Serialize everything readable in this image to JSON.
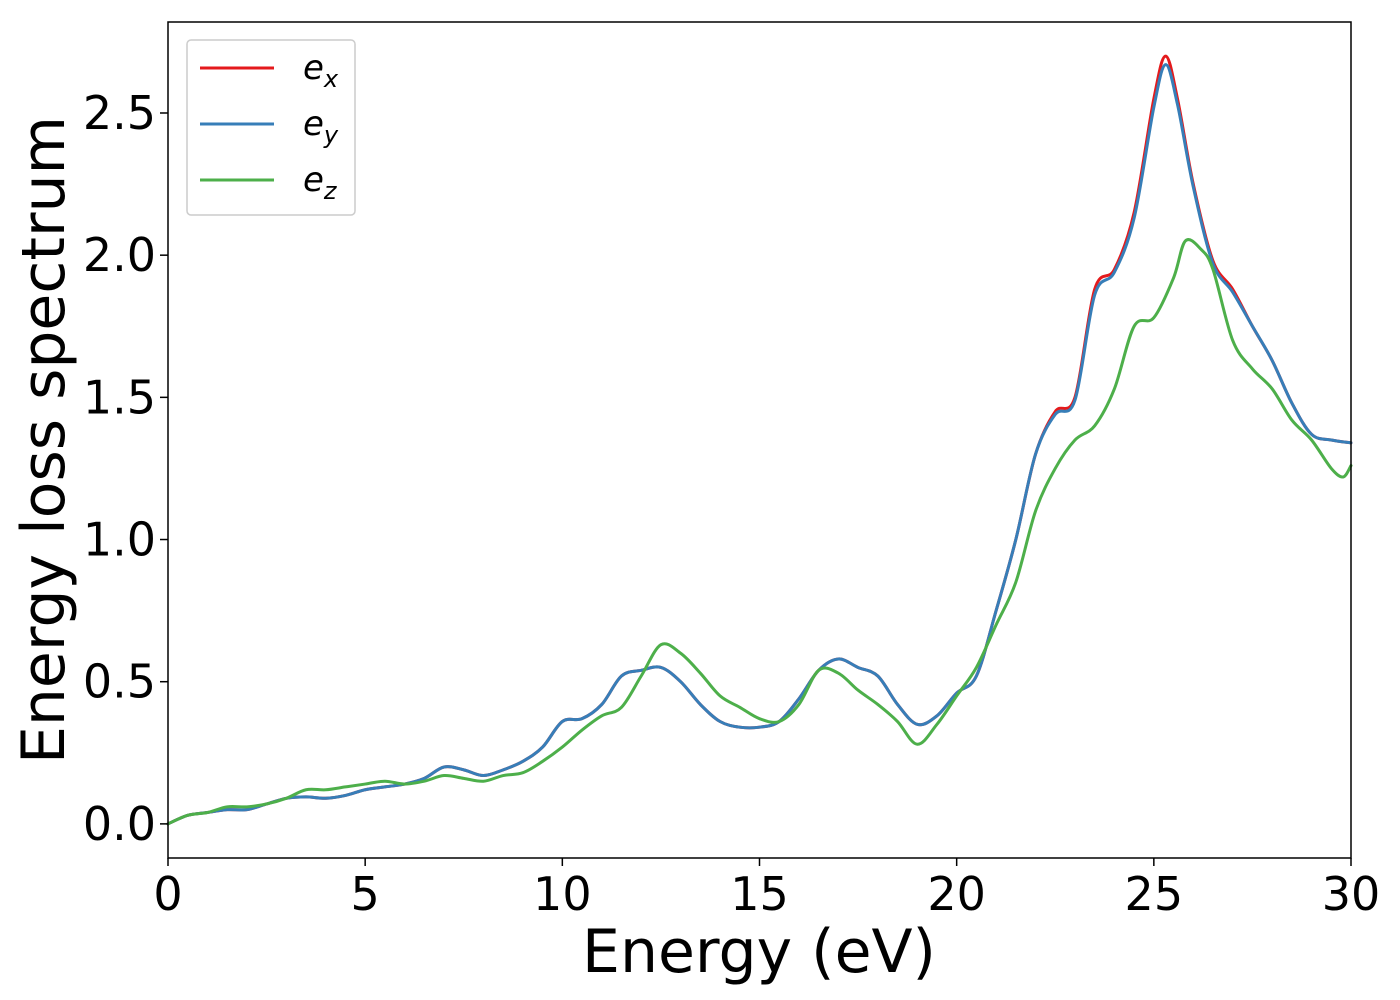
{
  "chart_data": {
    "type": "line",
    "xlabel": "Energy (eV)",
    "ylabel": "Energy loss spectrum",
    "xlim": [
      0,
      30
    ],
    "ylim": [
      -0.12,
      2.82
    ],
    "xticks": [
      0,
      5,
      10,
      15,
      20,
      25,
      30
    ],
    "xtick_labels": [
      "0",
      "5",
      "10",
      "15",
      "20",
      "25",
      "30"
    ],
    "yticks": [
      0.0,
      0.5,
      1.0,
      1.5,
      2.0,
      2.5
    ],
    "ytick_labels": [
      "0.0",
      "0.5",
      "1.0",
      "1.5",
      "2.0",
      "2.5"
    ],
    "grid": false,
    "legend_position": "top-left",
    "series": [
      {
        "name": "e_x",
        "legend_base": "e",
        "legend_sub": "x",
        "color": "#e41a1c",
        "x": [
          0,
          0.5,
          1.0,
          1.5,
          2.0,
          2.5,
          3.0,
          3.5,
          4.0,
          4.5,
          5.0,
          5.5,
          6.0,
          6.5,
          7.0,
          7.5,
          8.0,
          8.5,
          9.0,
          9.5,
          10.0,
          10.5,
          11.0,
          11.5,
          12.0,
          12.5,
          13.0,
          13.5,
          14.0,
          14.5,
          15.0,
          15.5,
          16.0,
          16.5,
          17.0,
          17.5,
          18.0,
          18.5,
          19.0,
          19.5,
          20.0,
          20.5,
          21.0,
          21.5,
          22.0,
          22.5,
          23.0,
          23.5,
          24.0,
          24.5,
          25.0,
          25.3,
          25.6,
          26.0,
          26.5,
          27.0,
          27.5,
          28.0,
          28.5,
          29.0,
          29.5,
          30.0
        ],
        "y": [
          0.0,
          0.03,
          0.04,
          0.05,
          0.05,
          0.07,
          0.09,
          0.095,
          0.09,
          0.1,
          0.12,
          0.13,
          0.14,
          0.16,
          0.2,
          0.19,
          0.17,
          0.19,
          0.22,
          0.27,
          0.36,
          0.37,
          0.42,
          0.52,
          0.54,
          0.55,
          0.5,
          0.42,
          0.36,
          0.34,
          0.34,
          0.36,
          0.44,
          0.54,
          0.58,
          0.55,
          0.52,
          0.42,
          0.35,
          0.38,
          0.46,
          0.52,
          0.75,
          1.0,
          1.3,
          1.45,
          1.5,
          1.88,
          1.95,
          2.15,
          2.55,
          2.7,
          2.55,
          2.25,
          1.98,
          1.88,
          1.75,
          1.63,
          1.48,
          1.37,
          1.35,
          1.34
        ]
      },
      {
        "name": "e_y",
        "legend_base": "e",
        "legend_sub": "y",
        "color": "#377eb8",
        "x": [
          0,
          0.5,
          1.0,
          1.5,
          2.0,
          2.5,
          3.0,
          3.5,
          4.0,
          4.5,
          5.0,
          5.5,
          6.0,
          6.5,
          7.0,
          7.5,
          8.0,
          8.5,
          9.0,
          9.5,
          10.0,
          10.5,
          11.0,
          11.5,
          12.0,
          12.5,
          13.0,
          13.5,
          14.0,
          14.5,
          15.0,
          15.5,
          16.0,
          16.5,
          17.0,
          17.5,
          18.0,
          18.5,
          19.0,
          19.5,
          20.0,
          20.5,
          21.0,
          21.5,
          22.0,
          22.5,
          23.0,
          23.5,
          24.0,
          24.5,
          25.0,
          25.3,
          25.6,
          26.0,
          26.5,
          27.0,
          27.5,
          28.0,
          28.5,
          29.0,
          29.5,
          30.0
        ],
        "y": [
          0.0,
          0.03,
          0.04,
          0.05,
          0.05,
          0.07,
          0.09,
          0.095,
          0.09,
          0.1,
          0.12,
          0.13,
          0.14,
          0.16,
          0.2,
          0.19,
          0.17,
          0.19,
          0.22,
          0.27,
          0.36,
          0.37,
          0.42,
          0.52,
          0.54,
          0.55,
          0.5,
          0.42,
          0.36,
          0.34,
          0.34,
          0.36,
          0.44,
          0.54,
          0.58,
          0.55,
          0.52,
          0.42,
          0.35,
          0.38,
          0.46,
          0.52,
          0.75,
          1.0,
          1.3,
          1.44,
          1.49,
          1.86,
          1.94,
          2.13,
          2.52,
          2.67,
          2.53,
          2.24,
          1.97,
          1.87,
          1.75,
          1.63,
          1.48,
          1.37,
          1.35,
          1.34
        ]
      },
      {
        "name": "e_z",
        "legend_base": "e",
        "legend_sub": "z",
        "color": "#4daf4a",
        "x": [
          0,
          0.5,
          1.0,
          1.5,
          2.0,
          2.5,
          3.0,
          3.5,
          4.0,
          4.5,
          5.0,
          5.5,
          6.0,
          6.5,
          7.0,
          7.5,
          8.0,
          8.5,
          9.0,
          9.5,
          10.0,
          10.5,
          11.0,
          11.5,
          12.0,
          12.5,
          13.0,
          13.5,
          14.0,
          14.5,
          15.0,
          15.5,
          16.0,
          16.5,
          17.0,
          17.5,
          18.0,
          18.5,
          19.0,
          19.5,
          20.0,
          20.5,
          21.0,
          21.5,
          22.0,
          22.5,
          23.0,
          23.5,
          24.0,
          24.5,
          25.0,
          25.5,
          25.8,
          26.2,
          26.5,
          27.0,
          27.5,
          28.0,
          28.5,
          29.0,
          29.5,
          29.8,
          30.0
        ],
        "y": [
          0.0,
          0.03,
          0.04,
          0.06,
          0.06,
          0.07,
          0.09,
          0.12,
          0.12,
          0.13,
          0.14,
          0.15,
          0.14,
          0.15,
          0.17,
          0.16,
          0.15,
          0.17,
          0.18,
          0.22,
          0.27,
          0.33,
          0.38,
          0.41,
          0.52,
          0.63,
          0.6,
          0.53,
          0.45,
          0.41,
          0.37,
          0.36,
          0.42,
          0.54,
          0.53,
          0.47,
          0.42,
          0.36,
          0.28,
          0.35,
          0.45,
          0.55,
          0.7,
          0.85,
          1.1,
          1.25,
          1.35,
          1.4,
          1.53,
          1.75,
          1.78,
          1.92,
          2.05,
          2.02,
          1.95,
          1.7,
          1.6,
          1.53,
          1.42,
          1.35,
          1.25,
          1.22,
          1.26
        ]
      }
    ]
  }
}
